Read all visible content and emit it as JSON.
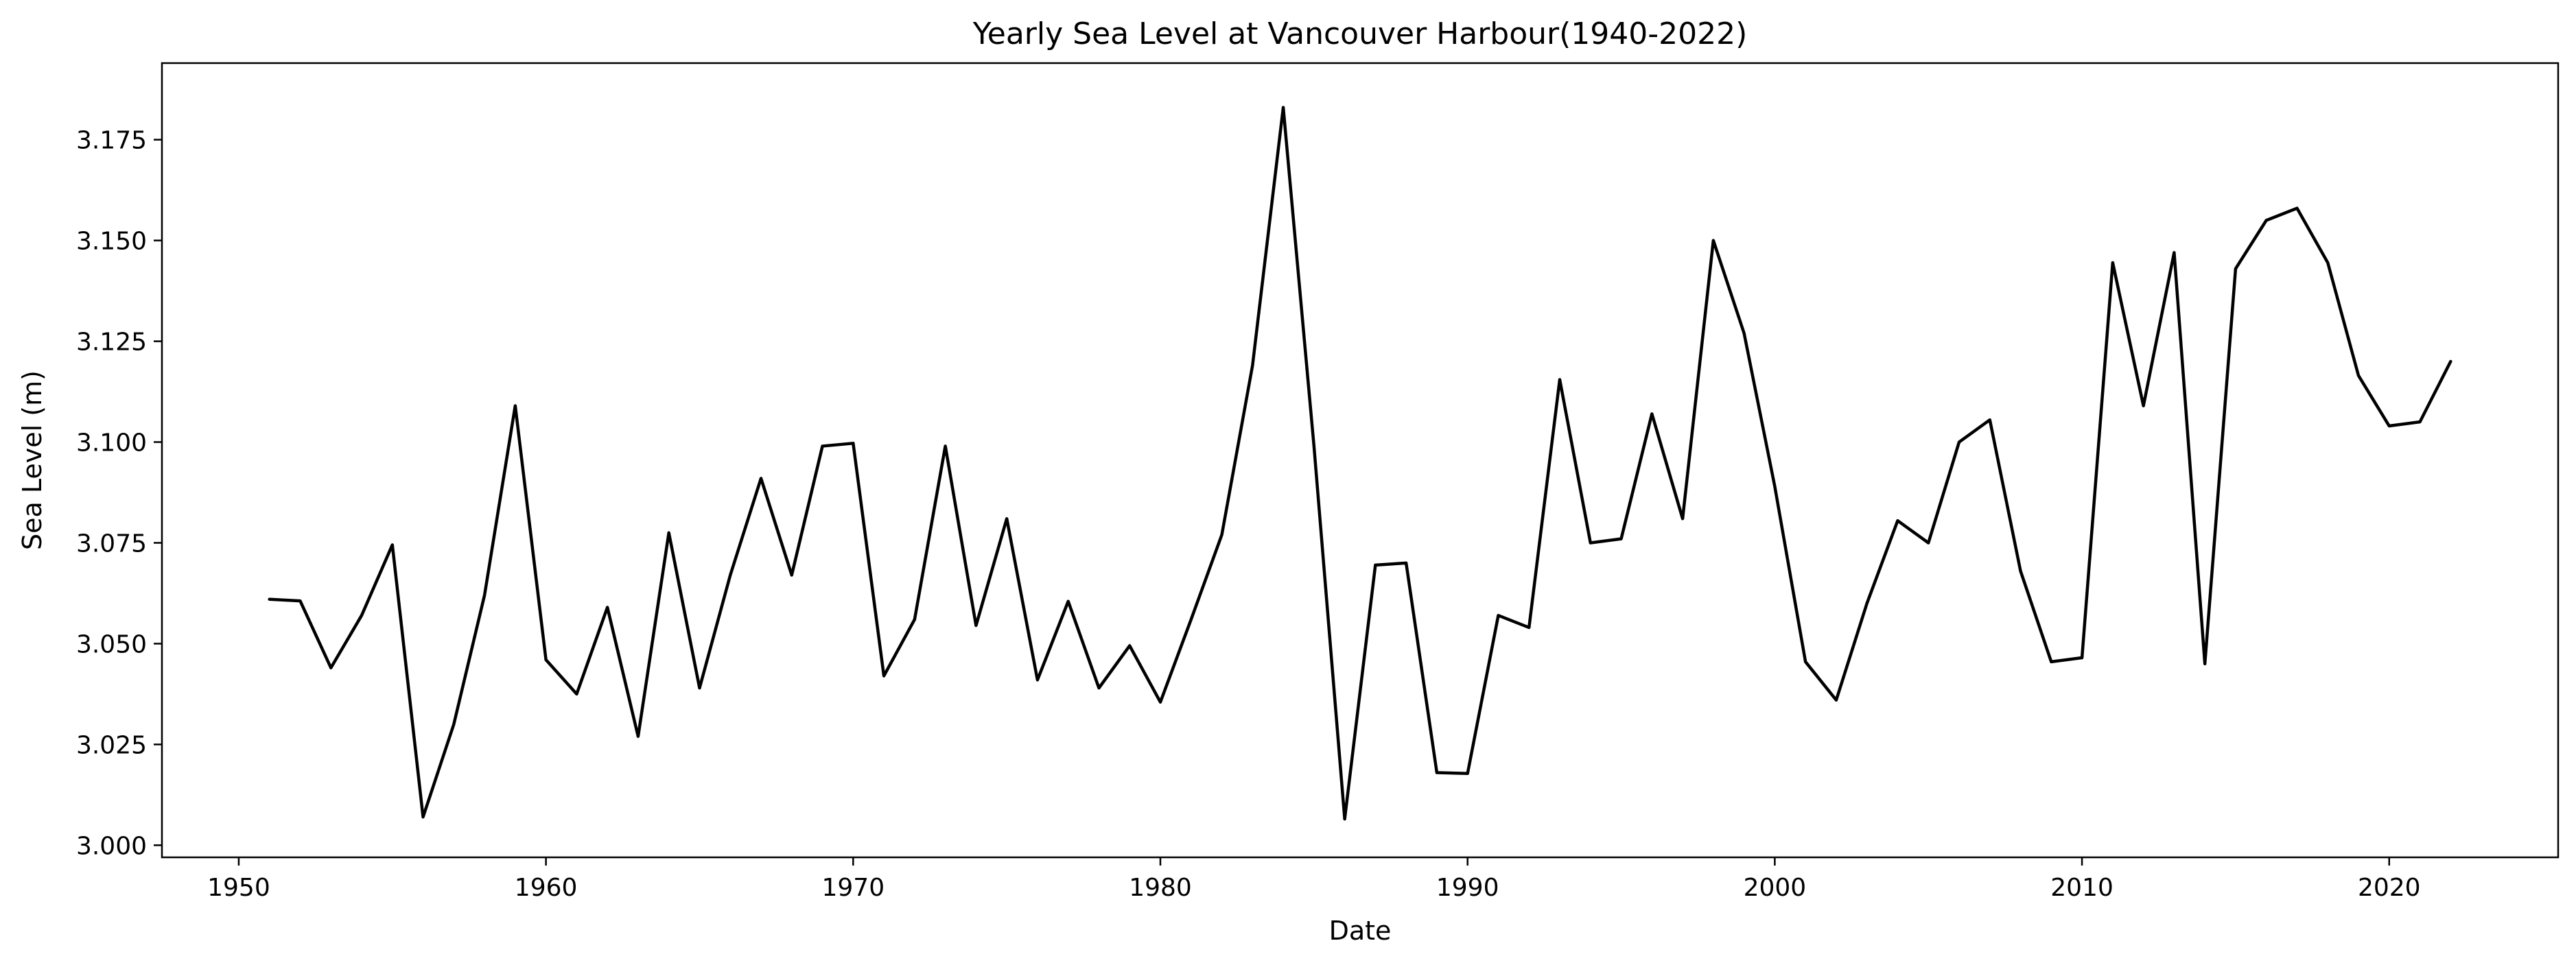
{
  "chart_data": {
    "type": "line",
    "title": "Yearly Sea Level at Vancouver Harbour(1940-2022)",
    "xlabel": "Date",
    "ylabel": "Sea Level (m)",
    "xlim": [
      1947.5,
      2025.5
    ],
    "ylim": [
      2.997,
      3.194
    ],
    "x_ticks": [
      1950,
      1960,
      1970,
      1980,
      1990,
      2000,
      2010,
      2020
    ],
    "y_ticks": [
      3.0,
      3.025,
      3.05,
      3.075,
      3.1,
      3.125,
      3.15,
      3.175
    ],
    "grid": false,
    "legend": "none",
    "line_color": "#000000",
    "series": [
      {
        "x": [
          1951,
          1952,
          1953,
          1954,
          1955,
          1956,
          1957,
          1958,
          1959,
          1960,
          1961,
          1962,
          1963,
          1964,
          1965,
          1966,
          1967,
          1968,
          1969,
          1970,
          1971,
          1972,
          1973,
          1974,
          1975,
          1976,
          1977,
          1978,
          1979,
          1980,
          1981,
          1982,
          1983,
          1984,
          1985,
          1986,
          1987,
          1988,
          1989,
          1990,
          1991,
          1992,
          1993,
          1994,
          1995,
          1996,
          1997,
          1998,
          1999,
          2000,
          2001,
          2002,
          2003,
          2004,
          2005,
          2006,
          2007,
          2008,
          2009,
          2010,
          2011,
          2012,
          2013,
          2014,
          2015,
          2016,
          2017,
          2018,
          2019,
          2020,
          2021,
          2022
        ],
        "values": [
          3.061,
          3.0606,
          3.044,
          3.057,
          3.0745,
          3.007,
          3.03,
          3.062,
          3.109,
          3.046,
          3.0375,
          3.059,
          3.027,
          3.0775,
          3.039,
          3.067,
          3.091,
          3.067,
          3.099,
          3.0997,
          3.042,
          3.056,
          3.099,
          3.0545,
          3.081,
          3.041,
          3.0605,
          3.039,
          3.0495,
          3.0355,
          3.056,
          3.077,
          3.119,
          3.183,
          3.099,
          3.0065,
          3.0695,
          3.07,
          3.018,
          3.0178,
          3.057,
          3.054,
          3.1155,
          3.075,
          3.076,
          3.107,
          3.081,
          3.15,
          3.127,
          3.089,
          3.0455,
          3.036,
          3.06,
          3.0805,
          3.075,
          3.1,
          3.1055,
          3.068,
          3.0455,
          3.0465,
          3.1445,
          3.109,
          3.147,
          3.045,
          3.143,
          3.155,
          3.158,
          3.1445,
          3.1165,
          3.104,
          3.105,
          3.12
        ]
      }
    ]
  }
}
